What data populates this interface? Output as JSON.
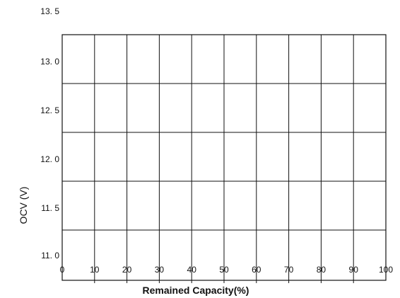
{
  "chart_data": {
    "type": "line",
    "title": "",
    "xlabel": "Remained Capacity(%)",
    "ylabel": "OCV (V)",
    "xlim": [
      0,
      100
    ],
    "ylim": [
      11.0,
      13.5
    ],
    "x_ticks": [
      "0",
      "10",
      "20",
      "30",
      "40",
      "50",
      "60",
      "70",
      "80",
      "90",
      "100"
    ],
    "y_ticks": [
      "11. 0",
      "11. 5",
      "12. 0",
      "12. 5",
      "13. 0",
      "13. 5"
    ],
    "grid": true,
    "series": []
  }
}
